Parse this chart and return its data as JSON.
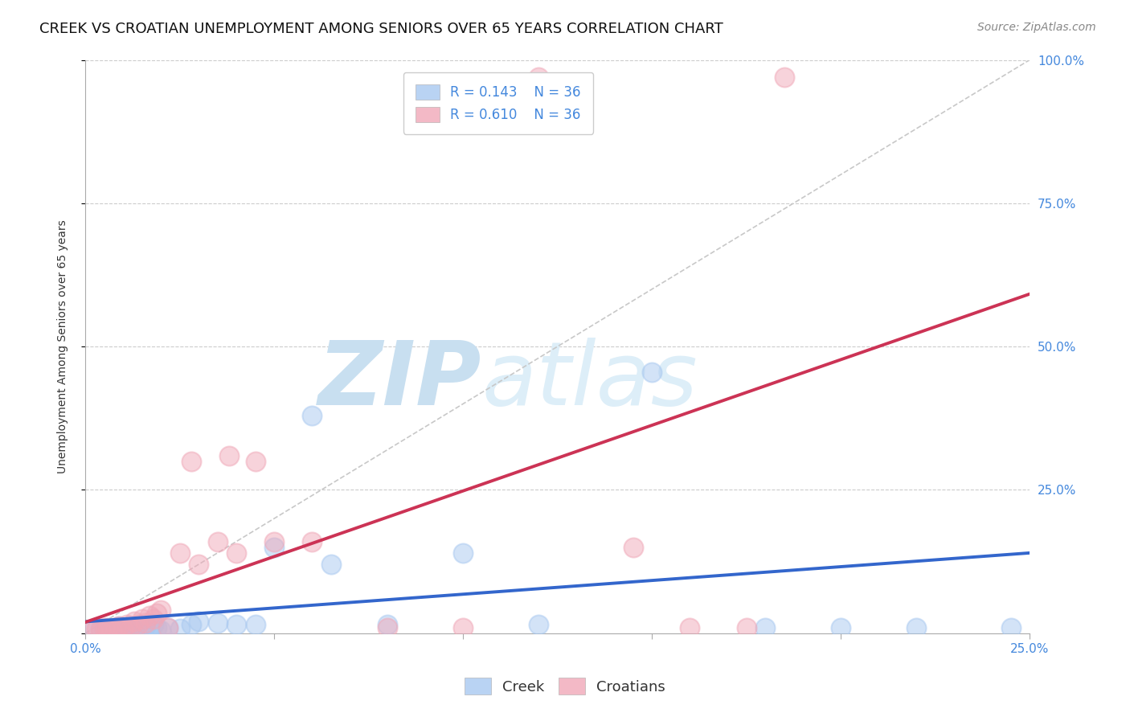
{
  "title": "CREEK VS CROATIAN UNEMPLOYMENT AMONG SENIORS OVER 65 YEARS CORRELATION CHART",
  "source": "Source: ZipAtlas.com",
  "ylabel": "Unemployment Among Seniors over 65 years",
  "xlim": [
    0.0,
    0.25
  ],
  "ylim": [
    0.0,
    1.0
  ],
  "xticks": [
    0.0,
    0.05,
    0.1,
    0.15,
    0.2,
    0.25
  ],
  "yticks": [
    0.0,
    0.25,
    0.5,
    0.75,
    1.0
  ],
  "ytick_labels": [
    "",
    "25.0%",
    "50.0%",
    "75.0%",
    "100.0%"
  ],
  "xtick_labels": [
    "0.0%",
    "",
    "",
    "",
    "",
    "25.0%"
  ],
  "creek_color": "#a8c8f0",
  "croatian_color": "#f0a8b8",
  "creek_line_color": "#3366cc",
  "croatian_line_color": "#cc3355",
  "diagonal_color": "#c8c8c8",
  "creek_R": 0.143,
  "creek_N": 36,
  "croatian_R": 0.61,
  "croatian_N": 36,
  "creek_scatter_x": [
    0.002,
    0.004,
    0.005,
    0.006,
    0.007,
    0.008,
    0.009,
    0.01,
    0.011,
    0.012,
    0.013,
    0.014,
    0.015,
    0.016,
    0.017,
    0.018,
    0.019,
    0.02,
    0.022,
    0.025,
    0.028,
    0.03,
    0.035,
    0.04,
    0.045,
    0.05,
    0.06,
    0.065,
    0.08,
    0.1,
    0.12,
    0.15,
    0.18,
    0.2,
    0.22,
    0.245
  ],
  "creek_scatter_y": [
    0.005,
    0.008,
    0.005,
    0.01,
    0.005,
    0.008,
    0.012,
    0.005,
    0.008,
    0.01,
    0.005,
    0.01,
    0.008,
    0.012,
    0.008,
    0.015,
    0.01,
    0.005,
    0.01,
    0.008,
    0.015,
    0.02,
    0.018,
    0.015,
    0.015,
    0.15,
    0.38,
    0.12,
    0.015,
    0.14,
    0.015,
    0.455,
    0.01,
    0.01,
    0.01,
    0.01
  ],
  "croatian_scatter_x": [
    0.002,
    0.003,
    0.004,
    0.005,
    0.006,
    0.007,
    0.008,
    0.009,
    0.01,
    0.011,
    0.012,
    0.013,
    0.014,
    0.015,
    0.016,
    0.017,
    0.018,
    0.019,
    0.02,
    0.022,
    0.025,
    0.028,
    0.03,
    0.035,
    0.04,
    0.045,
    0.05,
    0.06,
    0.08,
    0.1,
    0.12,
    0.145,
    0.16,
    0.175,
    0.185,
    0.038
  ],
  "croatian_scatter_y": [
    0.005,
    0.008,
    0.005,
    0.01,
    0.008,
    0.005,
    0.01,
    0.012,
    0.008,
    0.015,
    0.01,
    0.02,
    0.015,
    0.025,
    0.018,
    0.03,
    0.025,
    0.035,
    0.04,
    0.01,
    0.14,
    0.3,
    0.12,
    0.16,
    0.14,
    0.3,
    0.16,
    0.16,
    0.01,
    0.01,
    0.97,
    0.15,
    0.01,
    0.01,
    0.97,
    0.31
  ],
  "background_color": "#ffffff",
  "grid_color": "#cccccc",
  "title_fontsize": 13,
  "label_fontsize": 10,
  "tick_fontsize": 11,
  "source_fontsize": 10,
  "legend_fontsize": 12,
  "tick_label_color": "#4488dd",
  "watermark_zip_color": "#c8dff0",
  "watermark_atlas_color": "#c8dff0"
}
